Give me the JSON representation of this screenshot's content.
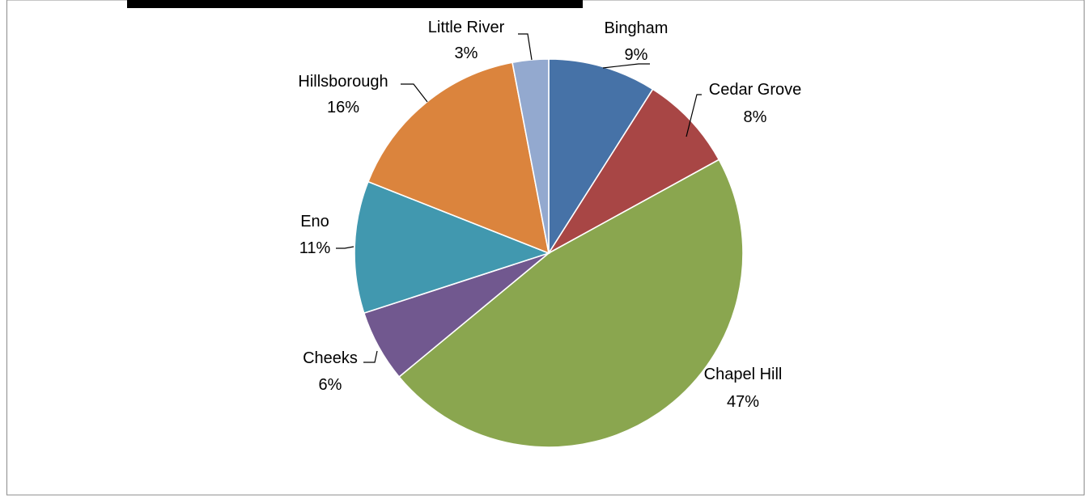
{
  "chart_data": {
    "type": "pie",
    "title": "",
    "start_angle_deg": 0,
    "direction": "clockwise",
    "slices": [
      {
        "label": "Bingham",
        "value": 9,
        "display": "9%",
        "color": "#4672A7"
      },
      {
        "label": "Cedar Grove",
        "value": 8,
        "display": "8%",
        "color": "#A84645"
      },
      {
        "label": "Chapel Hill",
        "value": 47,
        "display": "47%",
        "color": "#8AA64F"
      },
      {
        "label": "Cheeks",
        "value": 6,
        "display": "6%",
        "color": "#71588F"
      },
      {
        "label": "Eno",
        "value": 11,
        "display": "11%",
        "color": "#4198AF"
      },
      {
        "label": "Hillsborough",
        "value": 16,
        "display": "16%",
        "color": "#DB843D"
      },
      {
        "label": "Little River",
        "value": 3,
        "display": "3%",
        "color": "#93A9CF"
      }
    ],
    "legend": "none",
    "data_labels": "category-and-percent"
  }
}
